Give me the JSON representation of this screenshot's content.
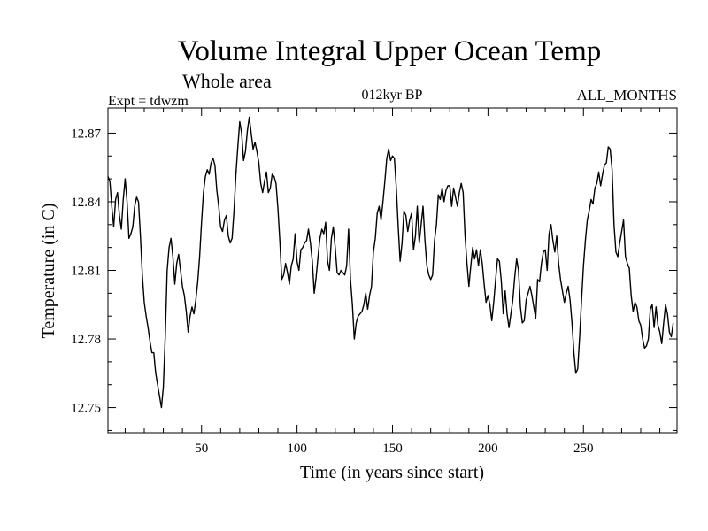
{
  "chart_data": {
    "type": "line",
    "title": "Volume Integral Upper Ocean Temp",
    "subtitle": "Whole area",
    "header_left": "Expt = tdwzm",
    "header_center": "012kyr BP",
    "header_right": "ALL_MONTHS",
    "xlabel": "Time (in years since start)",
    "ylabel": "Temperature (in C)",
    "xlim": [
      1,
      299
    ],
    "ylim": [
      12.739,
      12.881
    ],
    "x_ticks": [
      50,
      100,
      150,
      200,
      250
    ],
    "y_ticks": [
      12.75,
      12.78,
      12.81,
      12.84,
      12.87
    ],
    "y_tick_labels": [
      "12.75",
      "12.78",
      "12.81",
      "12.84",
      "12.87"
    ],
    "grid": false,
    "series": [
      {
        "color": "#000000",
        "x_start": 1,
        "x_step": 1,
        "values": [
          12.851,
          12.849,
          12.838,
          12.829,
          12.841,
          12.844,
          12.834,
          12.828,
          12.841,
          12.85,
          12.84,
          12.824,
          12.826,
          12.829,
          12.838,
          12.842,
          12.84,
          12.825,
          12.808,
          12.796,
          12.79,
          12.785,
          12.779,
          12.774,
          12.774,
          12.765,
          12.76,
          12.755,
          12.75,
          12.759,
          12.781,
          12.81,
          12.82,
          12.824,
          12.816,
          12.804,
          12.813,
          12.817,
          12.81,
          12.803,
          12.799,
          12.792,
          12.783,
          12.79,
          12.794,
          12.791,
          12.797,
          12.805,
          12.816,
          12.831,
          12.844,
          12.851,
          12.854,
          12.852,
          12.857,
          12.859,
          12.856,
          12.845,
          12.838,
          12.829,
          12.827,
          12.832,
          12.834,
          12.825,
          12.822,
          12.824,
          12.836,
          12.852,
          12.864,
          12.875,
          12.87,
          12.858,
          12.862,
          12.871,
          12.877,
          12.87,
          12.863,
          12.866,
          12.862,
          12.857,
          12.848,
          12.844,
          12.849,
          12.853,
          12.844,
          12.846,
          12.852,
          12.851,
          12.848,
          12.837,
          12.823,
          12.806,
          12.808,
          12.813,
          12.809,
          12.804,
          12.812,
          12.815,
          12.826,
          12.814,
          12.81,
          12.819,
          12.82,
          12.822,
          12.823,
          12.828,
          12.822,
          12.814,
          12.8,
          12.807,
          12.816,
          12.824,
          12.828,
          12.826,
          12.831,
          12.814,
          12.81,
          12.824,
          12.829,
          12.82,
          12.809,
          12.808,
          12.81,
          12.809,
          12.808,
          12.812,
          12.828,
          12.806,
          12.795,
          12.78,
          12.787,
          12.79,
          12.791,
          12.792,
          12.795,
          12.8,
          12.793,
          12.799,
          12.803,
          12.818,
          12.824,
          12.835,
          12.838,
          12.832,
          12.84,
          12.849,
          12.859,
          12.863,
          12.858,
          12.86,
          12.859,
          12.846,
          12.829,
          12.814,
          12.822,
          12.836,
          12.834,
          12.827,
          12.832,
          12.835,
          12.819,
          12.825,
          12.838,
          12.822,
          12.83,
          12.838,
          12.823,
          12.812,
          12.808,
          12.806,
          12.808,
          12.823,
          12.83,
          12.843,
          12.841,
          12.846,
          12.84,
          12.845,
          12.847,
          12.847,
          12.838,
          12.846,
          12.842,
          12.838,
          12.844,
          12.848,
          12.844,
          12.825,
          12.813,
          12.803,
          12.812,
          12.82,
          12.815,
          12.819,
          12.812,
          12.819,
          12.813,
          12.804,
          12.796,
          12.799,
          12.795,
          12.788,
          12.796,
          12.806,
          12.815,
          12.814,
          12.805,
          12.791,
          12.801,
          12.791,
          12.785,
          12.791,
          12.797,
          12.807,
          12.815,
          12.81,
          12.794,
          12.787,
          12.788,
          12.797,
          12.8,
          12.803,
          12.799,
          12.794,
          12.789,
          12.806,
          12.805,
          12.813,
          12.818,
          12.819,
          12.81,
          12.826,
          12.83,
          12.823,
          12.818,
          12.825,
          12.813,
          12.806,
          12.801,
          12.796,
          12.8,
          12.803,
          12.797,
          12.787,
          12.774,
          12.765,
          12.767,
          12.781,
          12.797,
          12.812,
          12.823,
          12.832,
          12.836,
          12.841,
          12.839,
          12.846,
          12.848,
          12.853,
          12.847,
          12.852,
          12.856,
          12.857,
          12.864,
          12.863,
          12.854,
          12.83,
          12.818,
          12.816,
          12.822,
          12.827,
          12.832,
          12.816,
          12.813,
          12.811,
          12.799,
          12.792,
          12.796,
          12.794,
          12.788,
          12.786,
          12.78,
          12.776,
          12.777,
          12.78,
          12.793,
          12.795,
          12.785,
          12.794,
          12.786,
          12.783,
          12.778,
          12.787,
          12.795,
          12.791,
          12.783,
          12.781,
          12.787
        ]
      }
    ]
  }
}
